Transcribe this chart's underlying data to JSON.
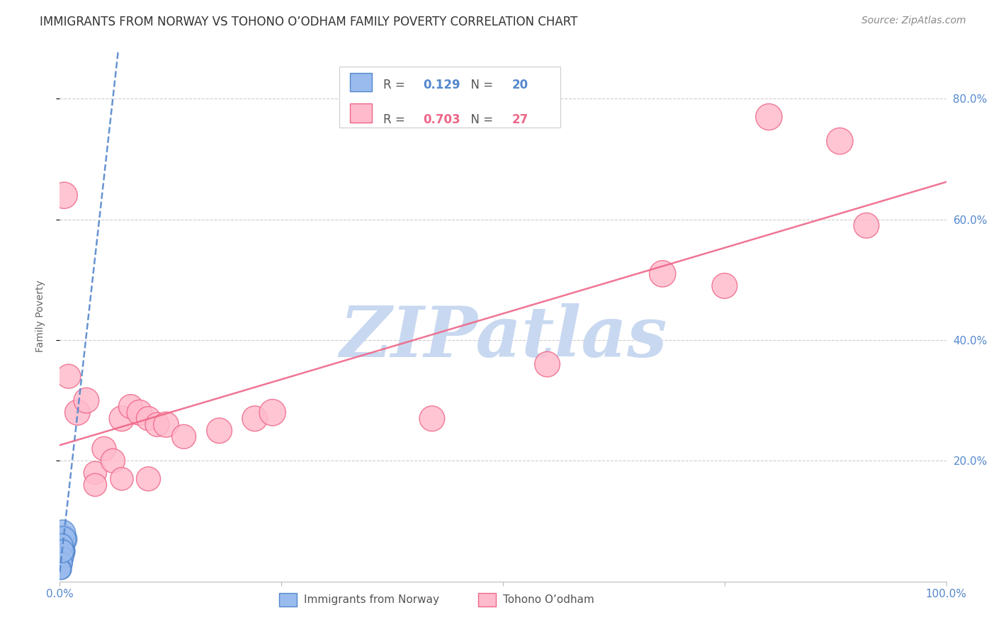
{
  "title": "IMMIGRANTS FROM NORWAY VS TOHONO O’ODHAM FAMILY POVERTY CORRELATION CHART",
  "source": "Source: ZipAtlas.com",
  "ylabel": "Family Poverty",
  "ytick_labels": [
    "20.0%",
    "40.0%",
    "60.0%",
    "80.0%"
  ],
  "ytick_positions": [
    0.2,
    0.4,
    0.6,
    0.8
  ],
  "xlim": [
    0,
    1.0
  ],
  "ylim": [
    0,
    0.88
  ],
  "background_color": "#ffffff",
  "watermark": "ZIPatlas",
  "watermark_color": "#c8d8f0",
  "norway_color": "#5588cc",
  "norway_fill": "#99bbee",
  "norway_R": 0.129,
  "norway_N": 20,
  "norway_label": "Immigrants from Norway",
  "tohono_color": "#ee6688",
  "tohono_fill": "#ffbbcc",
  "tohono_R": 0.703,
  "tohono_N": 27,
  "tohono_label": "Tohono O’odham",
  "norway_x": [
    0.002,
    0.003,
    0.004,
    0.003,
    0.002,
    0.001,
    0.003,
    0.002,
    0.004,
    0.002,
    0.003,
    0.001,
    0.002,
    0.003,
    0.002,
    0.003,
    0.002,
    0.002,
    0.001,
    0.003
  ],
  "norway_y": [
    0.05,
    0.06,
    0.07,
    0.05,
    0.04,
    0.03,
    0.08,
    0.06,
    0.07,
    0.04,
    0.05,
    0.04,
    0.03,
    0.05,
    0.06,
    0.04,
    0.03,
    0.02,
    0.02,
    0.05
  ],
  "norway_sizes": [
    120,
    100,
    130,
    110,
    100,
    90,
    120,
    100,
    110,
    90,
    100,
    90,
    80,
    100,
    90,
    80,
    80,
    70,
    70,
    90
  ],
  "tohono_x": [
    0.005,
    0.01,
    0.02,
    0.03,
    0.04,
    0.05,
    0.06,
    0.07,
    0.08,
    0.09,
    0.1,
    0.11,
    0.12,
    0.14,
    0.18,
    0.22,
    0.24,
    0.42,
    0.55,
    0.68,
    0.75,
    0.8,
    0.88,
    0.91,
    0.04,
    0.07,
    0.1
  ],
  "tohono_y": [
    0.64,
    0.34,
    0.28,
    0.3,
    0.18,
    0.22,
    0.2,
    0.27,
    0.29,
    0.28,
    0.27,
    0.26,
    0.26,
    0.24,
    0.25,
    0.27,
    0.28,
    0.27,
    0.36,
    0.51,
    0.49,
    0.77,
    0.73,
    0.59,
    0.16,
    0.17,
    0.17
  ],
  "tohono_sizes": [
    120,
    100,
    110,
    110,
    90,
    100,
    100,
    110,
    100,
    110,
    100,
    100,
    110,
    100,
    110,
    110,
    120,
    110,
    110,
    120,
    110,
    120,
    120,
    110,
    90,
    90,
    100
  ],
  "grid_color": "#cccccc",
  "title_fontsize": 12,
  "axis_label_fontsize": 10,
  "tick_fontsize": 11,
  "legend_fontsize": 12,
  "source_fontsize": 10
}
